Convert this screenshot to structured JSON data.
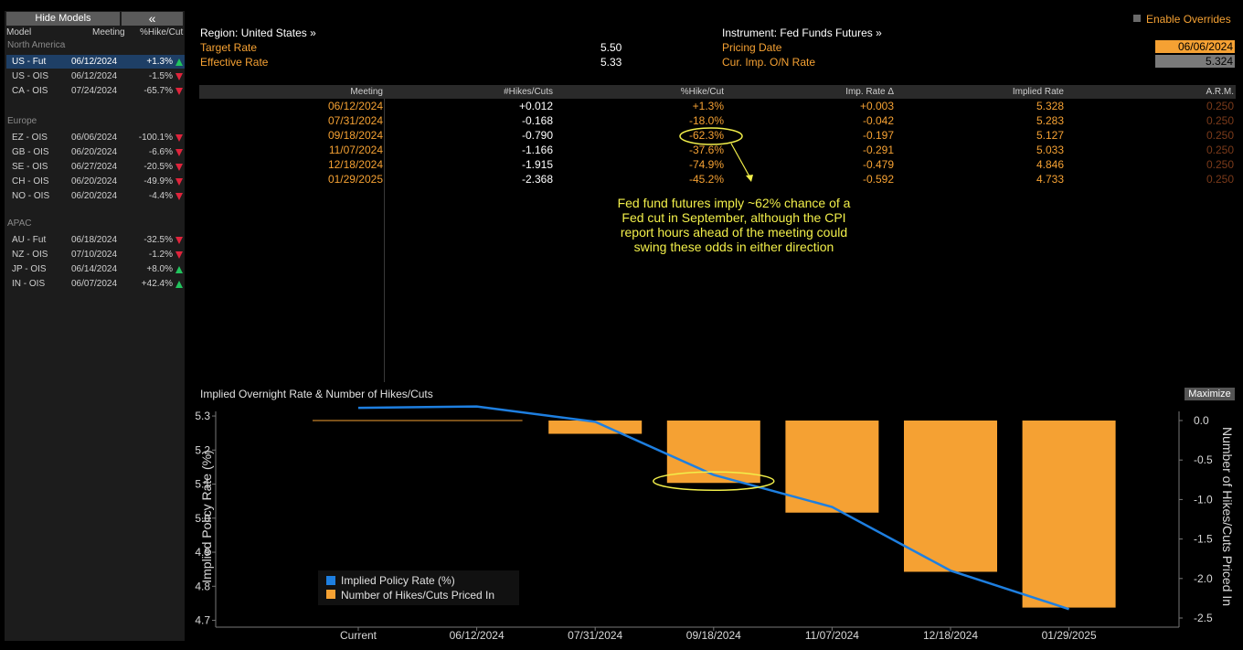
{
  "left_panel": {
    "hide_label": "Hide Models",
    "collapse_glyph": "«",
    "columns": [
      "Model",
      "Meeting",
      "%Hike/Cut"
    ],
    "groups": [
      {
        "name": "North America",
        "rows": [
          {
            "model": "US - Fut",
            "meeting": "06/12/2024",
            "pct": "+1.3%",
            "dir": "up",
            "selected": true
          },
          {
            "model": "US - OIS",
            "meeting": "06/12/2024",
            "pct": "-1.5%",
            "dir": "down"
          },
          {
            "model": "CA - OIS",
            "meeting": "07/24/2024",
            "pct": "-65.7%",
            "dir": "down"
          }
        ]
      },
      {
        "name": "Europe",
        "rows": [
          {
            "model": "EZ - OIS",
            "meeting": "06/06/2024",
            "pct": "-100.1%",
            "dir": "down"
          },
          {
            "model": "GB - OIS",
            "meeting": "06/20/2024",
            "pct": "-6.6%",
            "dir": "down"
          },
          {
            "model": "SE - OIS",
            "meeting": "06/27/2024",
            "pct": "-20.5%",
            "dir": "down"
          },
          {
            "model": "CH - OIS",
            "meeting": "06/20/2024",
            "pct": "-49.9%",
            "dir": "down"
          },
          {
            "model": "NO - OIS",
            "meeting": "06/20/2024",
            "pct": "-4.4%",
            "dir": "down"
          }
        ]
      },
      {
        "name": "APAC",
        "rows": [
          {
            "model": "AU - Fut",
            "meeting": "06/18/2024",
            "pct": "-32.5%",
            "dir": "down"
          },
          {
            "model": "NZ - OIS",
            "meeting": "07/10/2024",
            "pct": "-1.2%",
            "dir": "down"
          },
          {
            "model": "JP - OIS",
            "meeting": "06/14/2024",
            "pct": "+8.0%",
            "dir": "up"
          },
          {
            "model": "IN - OIS",
            "meeting": "06/07/2024",
            "pct": "+42.4%",
            "dir": "up"
          }
        ]
      }
    ]
  },
  "header": {
    "region_label": "Region: United States »",
    "target_rate_label": "Target Rate",
    "target_rate_value": "5.50",
    "effective_rate_label": "Effective Rate",
    "effective_rate_value": "5.33",
    "instrument_label": "Instrument: Fed Funds Futures »",
    "pricing_date_label": "Pricing Date",
    "pricing_date_value": "06/06/2024",
    "onrate_label": "Cur. Imp. O/N Rate",
    "onrate_value": "5.324",
    "overrides_label": "Enable Overrides"
  },
  "table": {
    "columns": [
      "Meeting",
      "#Hikes/Cuts",
      "%Hike/Cut",
      "Imp. Rate Δ",
      "Implied Rate",
      "A.R.M."
    ],
    "rows": [
      {
        "meeting": "06/12/2024",
        "hikes_cuts": "+0.012",
        "pct": "+1.3%",
        "rate_delta": "+0.003",
        "implied": "5.328",
        "arm": "0.250"
      },
      {
        "meeting": "07/31/2024",
        "hikes_cuts": "-0.168",
        "pct": "-18.0%",
        "rate_delta": "-0.042",
        "implied": "5.283",
        "arm": "0.250"
      },
      {
        "meeting": "09/18/2024",
        "hikes_cuts": "-0.790",
        "pct": "-62.3%",
        "rate_delta": "-0.197",
        "implied": "5.127",
        "arm": "0.250"
      },
      {
        "meeting": "11/07/2024",
        "hikes_cuts": "-1.166",
        "pct": "-37.6%",
        "rate_delta": "-0.291",
        "implied": "5.033",
        "arm": "0.250"
      },
      {
        "meeting": "12/18/2024",
        "hikes_cuts": "-1.915",
        "pct": "-74.9%",
        "rate_delta": "-0.479",
        "implied": "4.846",
        "arm": "0.250"
      },
      {
        "meeting": "01/29/2025",
        "hikes_cuts": "-2.368",
        "pct": "-45.2%",
        "rate_delta": "-0.592",
        "implied": "4.733",
        "arm": "0.250"
      }
    ]
  },
  "annotation": {
    "text_lines": [
      "Fed fund futures imply ~62% chance of a",
      "Fed cut in September, although the CPI",
      "report hours ahead of the meeting could",
      "swing these odds in either direction"
    ],
    "color": "#f2ef4a"
  },
  "chart_controls": {
    "maximize_label": "Maximize"
  },
  "colors": {
    "orange": "#f5a133",
    "blue": "#1e7fe0",
    "up": "#22c45e",
    "down": "#e0243c",
    "selected_row": "#1e3f66"
  },
  "chart_data": {
    "type": "bar",
    "title": "Implied Overnight Rate & Number of Hikes/Cuts",
    "categories": [
      "Current",
      "06/12/2024",
      "07/31/2024",
      "09/18/2024",
      "11/07/2024",
      "12/18/2024",
      "01/29/2025"
    ],
    "series": [
      {
        "name": "Implied Policy Rate (%)",
        "type": "line",
        "axis": "left",
        "color": "#1e7fe0",
        "values": [
          5.324,
          5.328,
          5.283,
          5.127,
          5.033,
          4.846,
          4.733
        ]
      },
      {
        "name": "Number of Hikes/Cuts Priced In",
        "type": "bar",
        "axis": "right",
        "color": "#f5a133",
        "values": [
          null,
          0.012,
          -0.168,
          -0.79,
          -1.166,
          -1.915,
          -2.368
        ]
      }
    ],
    "ylabel_left": "Implied Policy Rate (%)",
    "ylabel_right": "Number of Hikes/Cuts Priced In",
    "ylim_left": [
      4.68,
      5.335
    ],
    "ylim_right": [
      -2.5,
      0.0
    ],
    "yticks_left": [
      "5.3",
      "5.2",
      "5.1",
      "5.0",
      "4.9",
      "4.8",
      "4.7"
    ],
    "yticks_right": [
      "0.0",
      "-0.5",
      "-1.0",
      "-1.5",
      "-2.0",
      "-2.5"
    ],
    "legend_placement": "bottom-left",
    "grid": false
  }
}
